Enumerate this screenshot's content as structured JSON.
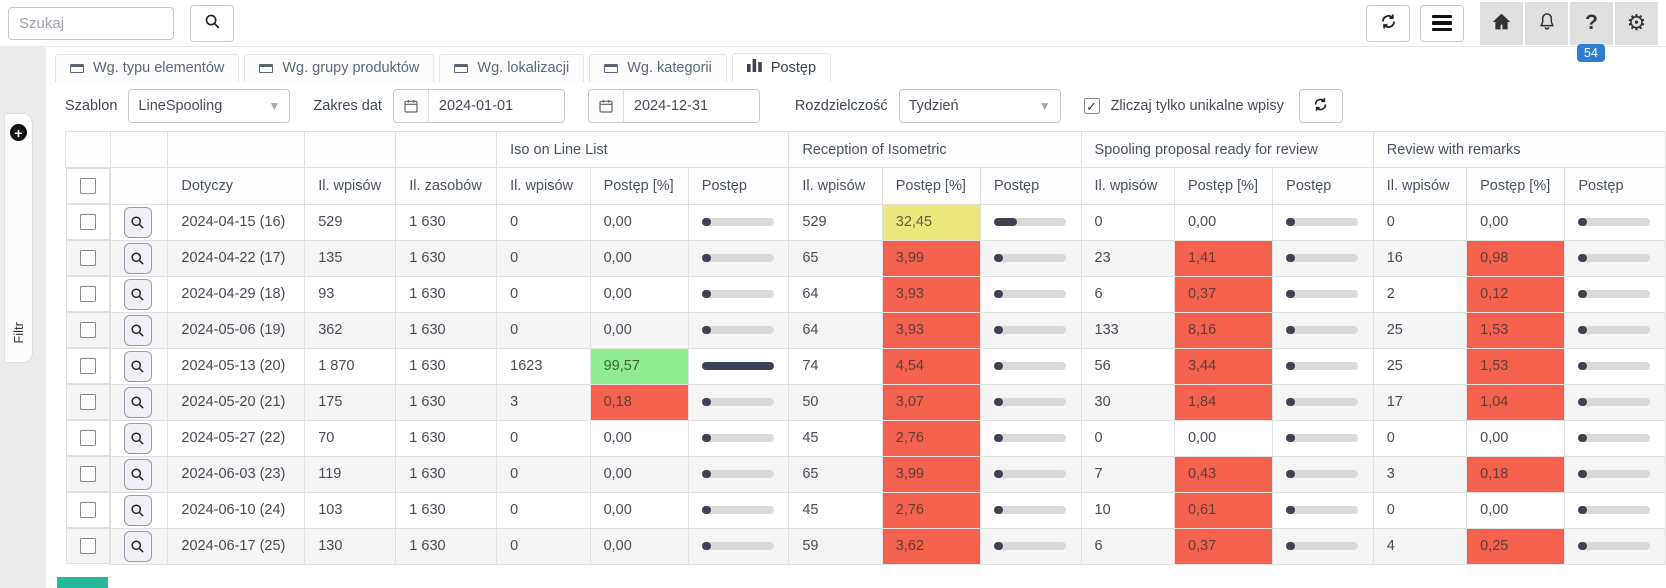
{
  "topbar": {
    "search_placeholder": "Szukaj",
    "badge_count": "54"
  },
  "tabs": [
    {
      "label": "Wg. typu elementów"
    },
    {
      "label": "Wg. grupy produktów"
    },
    {
      "label": "Wg. lokalizacji"
    },
    {
      "label": "Wg. kategorii"
    },
    {
      "label": "Postęp"
    }
  ],
  "filters": {
    "template_label": "Szablon",
    "template_value": "LineSpooling",
    "date_range_label": "Zakres dat",
    "date_from": "2024-01-01",
    "date_to": "2024-12-31",
    "resolution_label": "Rozdzielczość",
    "resolution_value": "Tydzień",
    "unique_label": "Zliczaj tylko unikalne wpisy",
    "unique_checked": true
  },
  "sidebar": {
    "label": "Filtr"
  },
  "colors": {
    "red": "#f4624d",
    "yellow": "#ebe77d",
    "green": "#90ee90",
    "bar_fill": "#3e4152",
    "bar_track": "#d9d9d9",
    "badge_blue": "#2e7ecf",
    "teal": "#26b99a"
  },
  "table": {
    "groups": [
      "Iso on Line List",
      "Reception of Isometric",
      "Spooling proposal ready for review",
      "Review with remarks"
    ],
    "base_columns": [
      "Dotyczy",
      "Il. wpisów",
      "Il. zasobów"
    ],
    "group_columns": [
      "Il. wpisów",
      "Postęp [%]",
      "Postęp"
    ],
    "rows": [
      {
        "dotyczy": "2024-04-15 (16)",
        "wpisy": "529",
        "zasoby": "1 630",
        "stages": [
          {
            "wpisy": "0",
            "pct": "0,00",
            "pct_num": 0,
            "tone": "none"
          },
          {
            "wpisy": "529",
            "pct": "32,45",
            "pct_num": 32.45,
            "tone": "yellow"
          },
          {
            "wpisy": "0",
            "pct": "0,00",
            "pct_num": 0,
            "tone": "none"
          },
          {
            "wpisy": "0",
            "pct": "0,00",
            "pct_num": 0,
            "tone": "none"
          }
        ]
      },
      {
        "dotyczy": "2024-04-22 (17)",
        "wpisy": "135",
        "zasoby": "1 630",
        "stages": [
          {
            "wpisy": "0",
            "pct": "0,00",
            "pct_num": 0,
            "tone": "none"
          },
          {
            "wpisy": "65",
            "pct": "3,99",
            "pct_num": 3.99,
            "tone": "red"
          },
          {
            "wpisy": "23",
            "pct": "1,41",
            "pct_num": 1.41,
            "tone": "red"
          },
          {
            "wpisy": "16",
            "pct": "0,98",
            "pct_num": 0.98,
            "tone": "red"
          }
        ]
      },
      {
        "dotyczy": "2024-04-29 (18)",
        "wpisy": "93",
        "zasoby": "1 630",
        "stages": [
          {
            "wpisy": "0",
            "pct": "0,00",
            "pct_num": 0,
            "tone": "none"
          },
          {
            "wpisy": "64",
            "pct": "3,93",
            "pct_num": 3.93,
            "tone": "red"
          },
          {
            "wpisy": "6",
            "pct": "0,37",
            "pct_num": 0.37,
            "tone": "red"
          },
          {
            "wpisy": "2",
            "pct": "0,12",
            "pct_num": 0.12,
            "tone": "red"
          }
        ]
      },
      {
        "dotyczy": "2024-05-06 (19)",
        "wpisy": "362",
        "zasoby": "1 630",
        "stages": [
          {
            "wpisy": "0",
            "pct": "0,00",
            "pct_num": 0,
            "tone": "none"
          },
          {
            "wpisy": "64",
            "pct": "3,93",
            "pct_num": 3.93,
            "tone": "red"
          },
          {
            "wpisy": "133",
            "pct": "8,16",
            "pct_num": 8.16,
            "tone": "red"
          },
          {
            "wpisy": "25",
            "pct": "1,53",
            "pct_num": 1.53,
            "tone": "red"
          }
        ]
      },
      {
        "dotyczy": "2024-05-13 (20)",
        "wpisy": "1 870",
        "zasoby": "1 630",
        "stages": [
          {
            "wpisy": "1623",
            "pct": "99,57",
            "pct_num": 99.57,
            "tone": "green"
          },
          {
            "wpisy": "74",
            "pct": "4,54",
            "pct_num": 4.54,
            "tone": "red"
          },
          {
            "wpisy": "56",
            "pct": "3,44",
            "pct_num": 3.44,
            "tone": "red"
          },
          {
            "wpisy": "25",
            "pct": "1,53",
            "pct_num": 1.53,
            "tone": "red"
          }
        ]
      },
      {
        "dotyczy": "2024-05-20 (21)",
        "wpisy": "175",
        "zasoby": "1 630",
        "stages": [
          {
            "wpisy": "3",
            "pct": "0,18",
            "pct_num": 0.18,
            "tone": "red"
          },
          {
            "wpisy": "50",
            "pct": "3,07",
            "pct_num": 3.07,
            "tone": "red"
          },
          {
            "wpisy": "30",
            "pct": "1,84",
            "pct_num": 1.84,
            "tone": "red"
          },
          {
            "wpisy": "17",
            "pct": "1,04",
            "pct_num": 1.04,
            "tone": "red"
          }
        ]
      },
      {
        "dotyczy": "2024-05-27 (22)",
        "wpisy": "70",
        "zasoby": "1 630",
        "stages": [
          {
            "wpisy": "0",
            "pct": "0,00",
            "pct_num": 0,
            "tone": "none"
          },
          {
            "wpisy": "45",
            "pct": "2,76",
            "pct_num": 2.76,
            "tone": "red"
          },
          {
            "wpisy": "0",
            "pct": "0,00",
            "pct_num": 0,
            "tone": "none"
          },
          {
            "wpisy": "0",
            "pct": "0,00",
            "pct_num": 0,
            "tone": "none"
          }
        ]
      },
      {
        "dotyczy": "2024-06-03 (23)",
        "wpisy": "119",
        "zasoby": "1 630",
        "stages": [
          {
            "wpisy": "0",
            "pct": "0,00",
            "pct_num": 0,
            "tone": "none"
          },
          {
            "wpisy": "65",
            "pct": "3,99",
            "pct_num": 3.99,
            "tone": "red"
          },
          {
            "wpisy": "7",
            "pct": "0,43",
            "pct_num": 0.43,
            "tone": "red"
          },
          {
            "wpisy": "3",
            "pct": "0,18",
            "pct_num": 0.18,
            "tone": "red"
          }
        ]
      },
      {
        "dotyczy": "2024-06-10 (24)",
        "wpisy": "103",
        "zasoby": "1 630",
        "stages": [
          {
            "wpisy": "0",
            "pct": "0,00",
            "pct_num": 0,
            "tone": "none"
          },
          {
            "wpisy": "45",
            "pct": "2,76",
            "pct_num": 2.76,
            "tone": "red"
          },
          {
            "wpisy": "10",
            "pct": "0,61",
            "pct_num": 0.61,
            "tone": "red"
          },
          {
            "wpisy": "0",
            "pct": "0,00",
            "pct_num": 0,
            "tone": "none"
          }
        ]
      },
      {
        "dotyczy": "2024-06-17 (25)",
        "wpisy": "130",
        "zasoby": "1 630",
        "stages": [
          {
            "wpisy": "0",
            "pct": "0,00",
            "pct_num": 0,
            "tone": "none"
          },
          {
            "wpisy": "59",
            "pct": "3,62",
            "pct_num": 3.62,
            "tone": "red"
          },
          {
            "wpisy": "6",
            "pct": "0,37",
            "pct_num": 0.37,
            "tone": "red"
          },
          {
            "wpisy": "4",
            "pct": "0,25",
            "pct_num": 0.25,
            "tone": "red"
          }
        ]
      }
    ]
  }
}
